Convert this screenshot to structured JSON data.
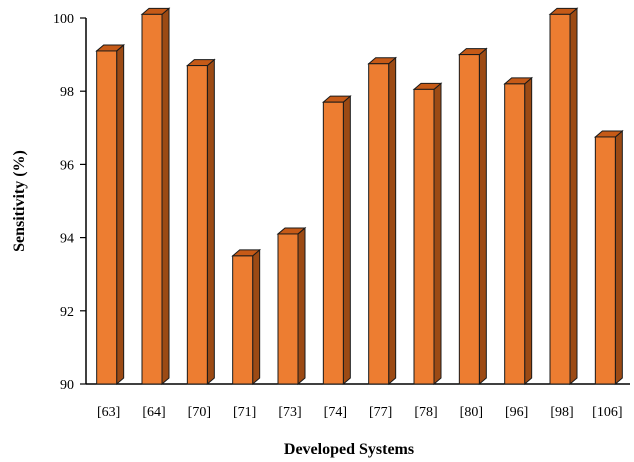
{
  "chart_data": {
    "type": "bar",
    "title": "",
    "xlabel": "Developed Systems",
    "ylabel": "Sensitivity (%)",
    "categories": [
      "[63]",
      "[64]",
      "[70]",
      "[71]",
      "[73]",
      "[74]",
      "[77]",
      "[78]",
      "[80]",
      "[96]",
      "[98]",
      "[106]"
    ],
    "values": [
      99.1,
      100.1,
      98.7,
      93.5,
      94.1,
      97.7,
      98.75,
      98.05,
      99.0,
      98.2,
      100.1,
      96.75
    ],
    "ylim": [
      90,
      100
    ],
    "yticks": [
      90,
      92,
      94,
      96,
      98,
      100
    ],
    "grid": false,
    "legend": false,
    "colors": {
      "bar_front": "#ED7D31",
      "bar_side": "#9C4A14",
      "bar_top": "#C65A17",
      "edge": "#1a1a1a"
    }
  }
}
